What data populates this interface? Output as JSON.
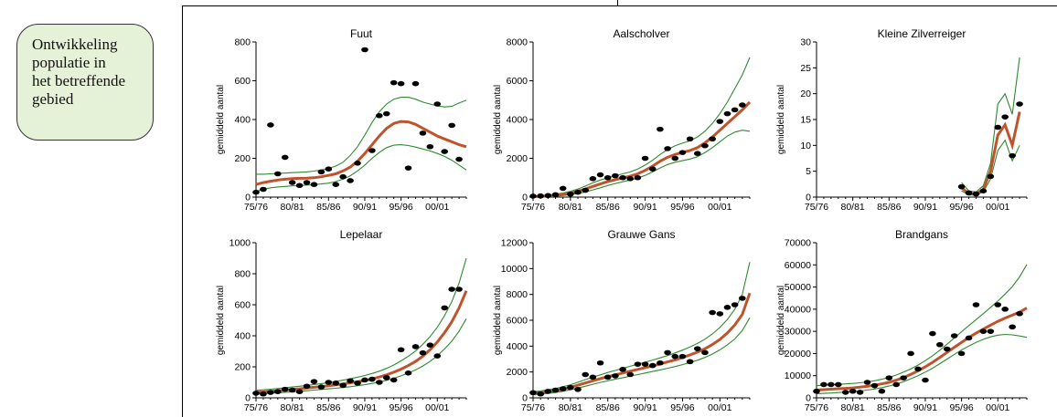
{
  "callout": {
    "text": "Ontwikkeling\npopulatie in\nhet betreffende\ngebied"
  },
  "colors": {
    "trend": "#c0532a",
    "ci": "#2e8b2e",
    "points": "#000000",
    "callout_bg": "#e6f2d8"
  },
  "chart_data": [
    {
      "type": "line",
      "title": "Fuut",
      "ylabel": "gemiddeld aantal",
      "ylim": [
        0,
        800
      ],
      "yticks": [
        0,
        200,
        400,
        600,
        800
      ],
      "xlim": [
        1975,
        2004
      ],
      "xticks": [
        "75/76",
        "80/81",
        "85/86",
        "90/91",
        "95/96",
        "00/01"
      ],
      "x": [
        1975,
        1976,
        1977,
        1978,
        1979,
        1980,
        1981,
        1982,
        1983,
        1984,
        1985,
        1986,
        1987,
        1988,
        1989,
        1990,
        1991,
        1992,
        1993,
        1994,
        1995,
        1996,
        1997,
        1998,
        1999,
        2000,
        2001,
        2002,
        2003,
        2004
      ],
      "points": [
        25,
        40,
        372,
        120,
        205,
        75,
        60,
        75,
        65,
        130,
        145,
        65,
        105,
        85,
        175,
        760,
        240,
        420,
        430,
        590,
        585,
        150,
        585,
        330,
        260,
        480,
        235,
        370,
        195,
        null
      ],
      "trend": [
        65,
        75,
        82,
        88,
        92,
        95,
        97,
        98,
        100,
        105,
        112,
        120,
        135,
        155,
        185,
        225,
        270,
        315,
        355,
        380,
        390,
        388,
        375,
        355,
        335,
        315,
        300,
        285,
        270,
        260
      ],
      "lower": [
        30,
        40,
        48,
        52,
        55,
        58,
        60,
        62,
        64,
        68,
        72,
        80,
        92,
        110,
        135,
        165,
        200,
        230,
        255,
        268,
        270,
        266,
        258,
        248,
        238,
        225,
        210,
        190,
        165,
        140
      ],
      "upper": [
        118,
        118,
        120,
        122,
        124,
        126,
        128,
        130,
        134,
        140,
        148,
        160,
        180,
        215,
        260,
        320,
        385,
        440,
        480,
        505,
        515,
        515,
        505,
        490,
        480,
        470,
        465,
        468,
        485,
        500
      ]
    },
    {
      "type": "line",
      "title": "Aalscholver",
      "ylabel": "gemiddeld aantal",
      "ylim": [
        0,
        8000
      ],
      "yticks": [
        0,
        2000,
        4000,
        6000,
        8000
      ],
      "xlim": [
        1975,
        2004
      ],
      "xticks": [
        "75/76",
        "80/81",
        "85/86",
        "90/91",
        "95/96",
        "00/01"
      ],
      "x": [
        1975,
        1976,
        1977,
        1978,
        1979,
        1980,
        1981,
        1982,
        1983,
        1984,
        1985,
        1986,
        1987,
        1988,
        1989,
        1990,
        1991,
        1992,
        1993,
        1994,
        1995,
        1996,
        1997,
        1998,
        1999,
        2000,
        2001,
        2002,
        2003,
        2004
      ],
      "points": [
        50,
        60,
        80,
        120,
        450,
        150,
        250,
        350,
        950,
        1150,
        1000,
        1100,
        1000,
        950,
        1000,
        2000,
        1450,
        3500,
        2500,
        2000,
        2300,
        3000,
        2250,
        2650,
        3000,
        3900,
        4300,
        4500,
        4750,
        null
      ],
      "trend": [
        30,
        40,
        60,
        90,
        140,
        210,
        300,
        420,
        550,
        680,
        800,
        900,
        990,
        1080,
        1200,
        1380,
        1600,
        1850,
        2050,
        2200,
        2300,
        2400,
        2550,
        2800,
        3100,
        3450,
        3800,
        4150,
        4500,
        4900
      ],
      "lower": [
        10,
        15,
        25,
        45,
        80,
        130,
        190,
        270,
        370,
        480,
        600,
        700,
        790,
        880,
        980,
        1120,
        1300,
        1500,
        1680,
        1800,
        1880,
        1960,
        2080,
        2300,
        2550,
        2850,
        3150,
        3350,
        3450,
        3400
      ],
      "upper": [
        60,
        80,
        110,
        150,
        210,
        300,
        420,
        570,
        740,
        880,
        1000,
        1100,
        1200,
        1300,
        1450,
        1650,
        1900,
        2200,
        2450,
        2650,
        2780,
        2900,
        3100,
        3400,
        3800,
        4300,
        4900,
        5600,
        6300,
        7200
      ]
    },
    {
      "type": "line",
      "title": "Kleine Zilverreiger",
      "ylabel": "gemiddeld aantal",
      "ylim": [
        0,
        30
      ],
      "yticks": [
        0,
        5,
        10,
        15,
        20,
        25,
        30
      ],
      "xlim": [
        1975,
        2004
      ],
      "xticks": [
        "75/76",
        "80/81",
        "85/86",
        "90/91",
        "95/96",
        "00/01"
      ],
      "x": [
        1995,
        1996,
        1997,
        1998,
        1999,
        2000,
        2001,
        2002,
        2003,
        2004
      ],
      "points": [
        2,
        0.8,
        0.6,
        1.2,
        4,
        13.5,
        15.5,
        8,
        18,
        null
      ],
      "trend": [
        1.8,
        0.7,
        0.6,
        1.5,
        5,
        12,
        14,
        10,
        16.5,
        null
      ],
      "lower": [
        1.2,
        0.4,
        0.4,
        1,
        3.5,
        9,
        11,
        7,
        10,
        null
      ],
      "upper": [
        2.8,
        1.2,
        1,
        2.2,
        6.5,
        18,
        20,
        16,
        27,
        null
      ]
    },
    {
      "type": "line",
      "title": "Lepelaar",
      "ylabel": "gemiddeld aantal",
      "ylim": [
        0,
        1000
      ],
      "yticks": [
        0,
        200,
        400,
        600,
        800,
        1000
      ],
      "xlim": [
        1975,
        2004
      ],
      "xticks": [
        "75/76",
        "80/81",
        "85/86",
        "90/91",
        "95/96",
        "00/01"
      ],
      "x": [
        1975,
        1976,
        1977,
        1978,
        1979,
        1980,
        1981,
        1982,
        1983,
        1984,
        1985,
        1986,
        1987,
        1988,
        1989,
        1990,
        1991,
        1992,
        1993,
        1994,
        1995,
        1996,
        1997,
        1998,
        1999,
        2000,
        2001,
        2002,
        2003,
        2004
      ],
      "points": [
        30,
        25,
        35,
        40,
        55,
        50,
        40,
        75,
        105,
        70,
        100,
        95,
        80,
        110,
        95,
        115,
        120,
        100,
        130,
        115,
        310,
        160,
        330,
        290,
        340,
        270,
        580,
        700,
        700,
        null
      ],
      "trend": [
        35,
        38,
        42,
        46,
        50,
        54,
        58,
        63,
        68,
        73,
        78,
        84,
        90,
        97,
        104,
        112,
        122,
        134,
        148,
        165,
        185,
        208,
        235,
        268,
        310,
        360,
        420,
        490,
        580,
        690
      ],
      "lower": [
        25,
        27,
        30,
        33,
        36,
        39,
        42,
        46,
        50,
        54,
        58,
        62,
        67,
        72,
        78,
        85,
        93,
        102,
        113,
        126,
        142,
        160,
        180,
        205,
        235,
        272,
        315,
        365,
        430,
        510
      ],
      "upper": [
        48,
        52,
        56,
        60,
        65,
        70,
        75,
        80,
        86,
        92,
        98,
        106,
        114,
        123,
        133,
        144,
        157,
        172,
        190,
        212,
        238,
        268,
        302,
        345,
        395,
        455,
        530,
        620,
        740,
        900
      ]
    },
    {
      "type": "line",
      "title": "Grauwe Gans",
      "ylabel": "gemiddeld aantal",
      "ylim": [
        0,
        12000
      ],
      "yticks": [
        0,
        2000,
        4000,
        6000,
        8000,
        10000,
        12000
      ],
      "xlim": [
        1975,
        2004
      ],
      "xticks": [
        "75/76",
        "80/81",
        "85/86",
        "90/91",
        "95/96",
        "00/01"
      ],
      "x": [
        1975,
        1976,
        1977,
        1978,
        1979,
        1980,
        1981,
        1982,
        1983,
        1984,
        1985,
        1986,
        1987,
        1988,
        1989,
        1990,
        1991,
        1992,
        1993,
        1994,
        1995,
        1996,
        1997,
        1998,
        1999,
        2000,
        2001,
        2002,
        2003,
        2004
      ],
      "points": [
        400,
        300,
        500,
        600,
        700,
        800,
        650,
        1800,
        1600,
        2700,
        1600,
        1700,
        2200,
        1800,
        2600,
        2600,
        2500,
        2700,
        3500,
        3200,
        3200,
        2800,
        3800,
        3500,
        6600,
        6500,
        7000,
        7200,
        7700,
        null
      ],
      "trend": [
        350,
        400,
        470,
        560,
        680,
        820,
        980,
        1150,
        1320,
        1480,
        1640,
        1780,
        1920,
        2060,
        2200,
        2340,
        2480,
        2620,
        2780,
        2940,
        3120,
        3320,
        3540,
        3800,
        4120,
        4520,
        5020,
        5650,
        6450,
        8100
      ],
      "lower": [
        250,
        290,
        340,
        410,
        510,
        630,
        760,
        900,
        1050,
        1190,
        1320,
        1440,
        1560,
        1680,
        1800,
        1920,
        2040,
        2160,
        2290,
        2420,
        2570,
        2730,
        2910,
        3130,
        3390,
        3710,
        4100,
        4560,
        5200,
        6200
      ],
      "upper": [
        480,
        540,
        620,
        720,
        860,
        1020,
        1210,
        1410,
        1600,
        1780,
        1960,
        2120,
        2280,
        2440,
        2600,
        2760,
        2920,
        3090,
        3270,
        3470,
        3690,
        3930,
        4210,
        4540,
        4940,
        5440,
        6060,
        6860,
        8000,
        10500
      ]
    },
    {
      "type": "line",
      "title": "Brandgans",
      "ylabel": "gemiddeld aantal",
      "ylim": [
        0,
        70000
      ],
      "yticks": [
        0,
        10000,
        20000,
        30000,
        40000,
        50000,
        60000,
        70000
      ],
      "xlim": [
        1975,
        2004
      ],
      "xticks": [
        "75/76",
        "80/81",
        "85/86",
        "90/91",
        "95/96",
        "00/01"
      ],
      "x": [
        1975,
        1976,
        1977,
        1978,
        1979,
        1980,
        1981,
        1982,
        1983,
        1984,
        1985,
        1986,
        1987,
        1988,
        1989,
        1990,
        1991,
        1992,
        1993,
        1994,
        1995,
        1996,
        1997,
        1998,
        1999,
        2000,
        2001,
        2002,
        2003,
        2004
      ],
      "points": [
        3000,
        6000,
        6000,
        6000,
        2500,
        3000,
        2500,
        7000,
        5500,
        3000,
        9000,
        6000,
        9000,
        20000,
        13000,
        8000,
        29000,
        24000,
        22000,
        28000,
        20000,
        27000,
        42000,
        30000,
        30000,
        42000,
        40000,
        32000,
        38000,
        null
      ],
      "trend": [
        3500,
        3700,
        3900,
        4100,
        4300,
        4500,
        4800,
        5200,
        5700,
        6300,
        7000,
        8000,
        9200,
        10600,
        12200,
        14000,
        16000,
        18200,
        20500,
        22800,
        25000,
        27200,
        29200,
        31000,
        32800,
        34500,
        36000,
        37300,
        38700,
        40500
      ],
      "lower": [
        1800,
        2000,
        2200,
        2400,
        2600,
        2800,
        3100,
        3500,
        4000,
        4600,
        5300,
        6200,
        7300,
        8600,
        10000,
        11600,
        13400,
        15400,
        17500,
        19600,
        21600,
        23400,
        25000,
        26400,
        27500,
        28300,
        28600,
        28400,
        27900,
        27300
      ],
      "upper": [
        5500,
        5700,
        5900,
        6100,
        6300,
        6500,
        6800,
        7200,
        7700,
        8400,
        9200,
        10300,
        11600,
        13100,
        14800,
        16800,
        19000,
        21500,
        24200,
        27000,
        29800,
        32600,
        35300,
        38000,
        40800,
        43700,
        46800,
        50200,
        54600,
        60200
      ]
    }
  ]
}
